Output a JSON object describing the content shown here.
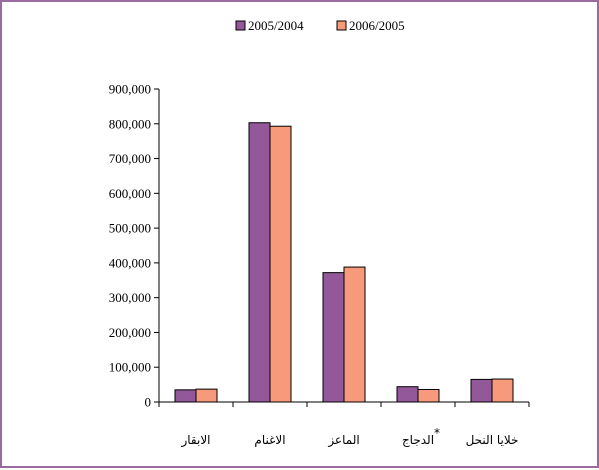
{
  "chart_data": {
    "type": "bar",
    "categories": [
      "الابقار",
      "الاغنام",
      "الماعز",
      "الدجاج",
      "خلايا النحل"
    ],
    "category_marks": [
      "",
      "",
      "",
      "*",
      ""
    ],
    "series": [
      {
        "name": "2005/2004",
        "color": "#93589a",
        "values": [
          35000,
          803000,
          372000,
          44000,
          65000
        ]
      },
      {
        "name": "2006/2005",
        "color": "#f79a7c",
        "values": [
          37000,
          793000,
          388000,
          36000,
          66000
        ]
      }
    ],
    "yticks": [
      "0",
      "100,000",
      "200,000",
      "300,000",
      "400,000",
      "500,000",
      "600,000",
      "700,000",
      "800,000",
      "900,000"
    ],
    "ylim": [
      0,
      900000
    ],
    "legend": "top-center",
    "grid": false
  }
}
